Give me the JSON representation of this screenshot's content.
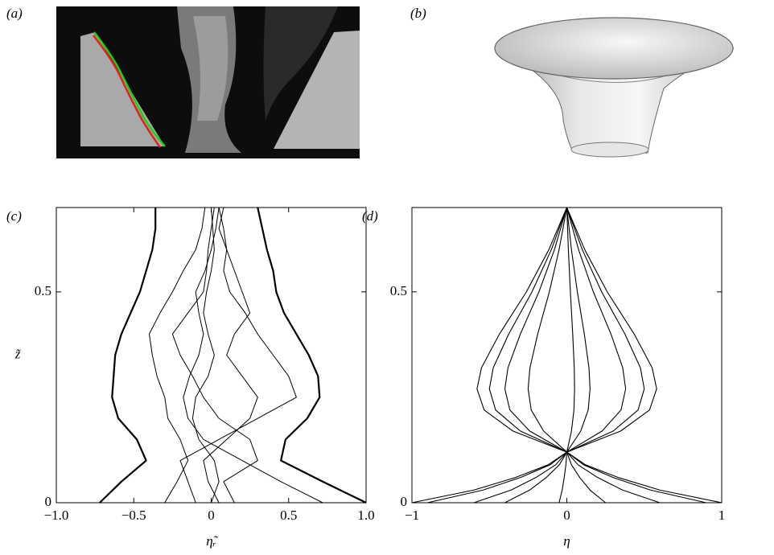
{
  "panels": [
    {
      "label": "(a)"
    },
    {
      "label": "(b)"
    }
  ],
  "chart_data": [
    {
      "type": "line",
      "panel_label": "(c)",
      "xlabel": "η̃ᵣ",
      "ylabel": "z̃",
      "xlim": [
        -1,
        1
      ],
      "ylim": [
        0,
        0.7
      ],
      "xticks": [
        {
          "value": -1,
          "label": "−1.0"
        },
        {
          "value": -0.5,
          "label": "−0.5"
        },
        0,
        0.5,
        {
          "value": 1,
          "label": "1.0"
        }
      ],
      "yticks": [
        0,
        0.5
      ],
      "y": [
        0,
        0.05,
        0.1,
        0.15,
        0.2,
        0.25,
        0.3,
        0.35,
        0.4,
        0.45,
        0.5,
        0.55,
        0.6,
        0.65,
        0.7
      ],
      "series": [
        {
          "color": "#000000",
          "line_width": 2.2,
          "x": [
            -0.72,
            -0.58,
            -0.42,
            -0.48,
            -0.6,
            -0.64,
            -0.63,
            -0.62,
            -0.58,
            -0.52,
            -0.46,
            -0.42,
            -0.38,
            -0.36,
            -0.36
          ]
        },
        {
          "color": "#000000",
          "line_width": 2.2,
          "x": [
            1.0,
            0.72,
            0.45,
            0.48,
            0.62,
            0.7,
            0.69,
            0.63,
            0.55,
            0.47,
            0.42,
            0.4,
            0.36,
            0.33,
            0.3
          ]
        },
        {
          "color": "#000000",
          "line_width": 1,
          "x": [
            -0.3,
            -0.22,
            -0.15,
            -0.2,
            -0.28,
            -0.3,
            -0.35,
            -0.38,
            -0.4,
            -0.33,
            -0.25,
            -0.18,
            -0.1,
            -0.06,
            -0.04
          ]
        },
        {
          "color": "#000000",
          "line_width": 1,
          "x": [
            0.72,
            0.45,
            0.2,
            -0.05,
            -0.15,
            -0.18,
            -0.14,
            -0.08,
            -0.05,
            -0.08,
            -0.1,
            -0.04,
            0,
            0.03,
            0.05
          ]
        },
        {
          "color": "#000000",
          "line_width": 1,
          "x": [
            -0.1,
            -0.15,
            -0.2,
            0.05,
            0.3,
            0.55,
            0.5,
            0.4,
            0.3,
            0.22,
            0.12,
            0.08,
            0.1,
            0.08,
            0.05
          ]
        },
        {
          "color": "#000000",
          "line_width": 1,
          "x": [
            0,
            0.05,
            0.02,
            -0.08,
            -0.12,
            -0.1,
            -0.02,
            0.02,
            -0.02,
            -0.05,
            -0.03,
            0,
            0.02,
            0.01,
            0
          ]
        },
        {
          "color": "#000000",
          "line_width": 1,
          "x": [
            0.05,
            -0.02,
            -0.05,
            0.1,
            0.25,
            0.3,
            0.2,
            0.1,
            0.15,
            0.25,
            0.2,
            0.15,
            0.1,
            0.05,
            0.08
          ]
        },
        {
          "color": "#000000",
          "line_width": 1,
          "x": [
            0.15,
            0.08,
            0.3,
            0.25,
            0.05,
            -0.05,
            -0.12,
            -0.2,
            -0.25,
            -0.15,
            -0.05,
            -0.03,
            -0.02,
            0,
            0.02
          ]
        }
      ]
    },
    {
      "type": "line",
      "panel_label": "(d)",
      "xlabel": "η",
      "xlim": [
        -1,
        1
      ],
      "ylim": [
        0,
        0.7
      ],
      "xticks": [
        {
          "value": -1,
          "label": "−1"
        },
        0,
        1
      ],
      "yticks": [
        0,
        0.5
      ],
      "y": [
        0,
        0.03,
        0.06,
        0.09,
        0.12,
        0.17,
        0.22,
        0.27,
        0.32,
        0.4,
        0.5,
        0.6,
        0.7
      ],
      "series": [
        {
          "color": "#000000",
          "line_width": 1.1,
          "x": [
            1,
            0.6,
            0.33,
            0.12,
            0,
            0.348,
            0.534,
            0.58,
            0.551,
            0.435,
            0.261,
            0.116,
            0
          ]
        },
        {
          "color": "#000000",
          "line_width": 1.1,
          "x": [
            -1,
            -0.6,
            -0.33,
            -0.12,
            0,
            -0.348,
            -0.534,
            -0.58,
            -0.551,
            -0.435,
            -0.261,
            -0.116,
            0
          ]
        },
        {
          "color": "#000000",
          "line_width": 1.1,
          "x": [
            0.9,
            0.54,
            0.297,
            0.108,
            0,
            0.3,
            0.46,
            0.5,
            0.475,
            0.375,
            0.225,
            0.1,
            0
          ]
        },
        {
          "color": "#000000",
          "line_width": 1.1,
          "x": [
            -0.9,
            -0.54,
            -0.297,
            -0.108,
            0,
            -0.3,
            -0.46,
            -0.5,
            -0.475,
            -0.375,
            -0.225,
            -0.1,
            0
          ]
        },
        {
          "color": "#000000",
          "line_width": 1.1,
          "x": [
            0.6,
            0.36,
            0.198,
            0.072,
            0,
            0.228,
            0.35,
            0.38,
            0.361,
            0.285,
            0.171,
            0.076,
            0
          ]
        },
        {
          "color": "#000000",
          "line_width": 1.1,
          "x": [
            -0.6,
            -0.36,
            -0.198,
            -0.072,
            0,
            -0.24,
            -0.368,
            -0.4,
            -0.38,
            -0.3,
            -0.18,
            -0.08,
            0
          ]
        },
        {
          "color": "#000000",
          "line_width": 1.1,
          "x": [
            0.25,
            0.15,
            0.083,
            0.03,
            0,
            0.09,
            0.138,
            0.15,
            0.143,
            0.113,
            0.068,
            0.03,
            0
          ]
        },
        {
          "color": "#000000",
          "line_width": 1.1,
          "x": [
            -0.4,
            -0.24,
            -0.132,
            -0.048,
            0,
            -0.15,
            -0.23,
            -0.25,
            -0.238,
            -0.188,
            -0.113,
            -0.05,
            0
          ]
        },
        {
          "color": "#000000",
          "line_width": 1.1,
          "x": [
            -0.05,
            -0.03,
            -0.017,
            -0.006,
            0,
            0.03,
            0.046,
            0.05,
            0.048,
            0.038,
            0.023,
            0.01,
            0
          ]
        }
      ]
    }
  ]
}
